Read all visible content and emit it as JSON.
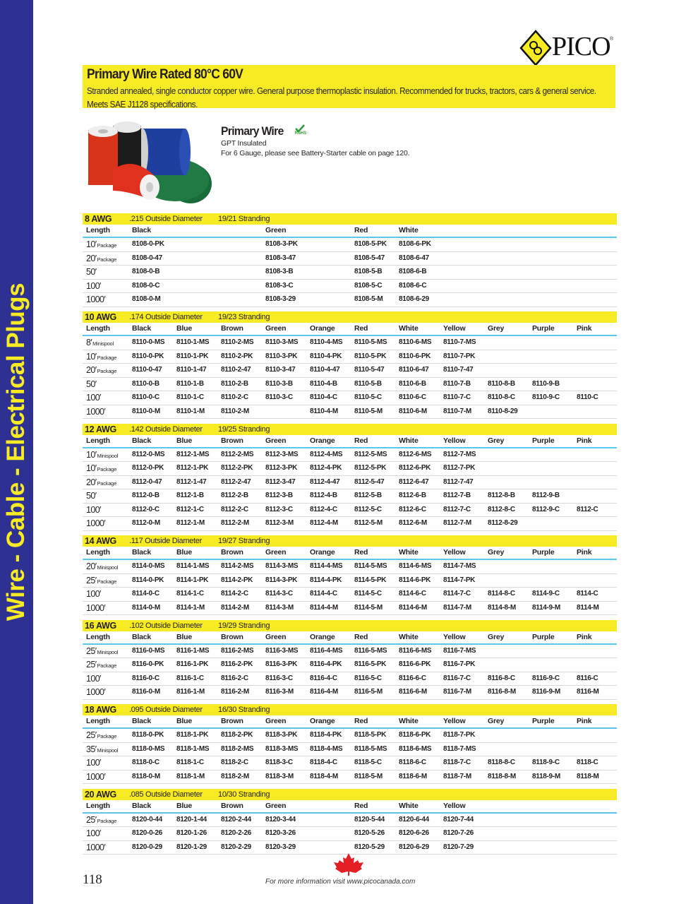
{
  "sidebar": {
    "label": "Wire - Cable - Electrical Plugs",
    "color": "#2e3191",
    "text_color": "#f7ec23"
  },
  "logo": {
    "text": "PICO",
    "reg": "®"
  },
  "banner": {
    "title": "Primary Wire Rated 80°C 60V",
    "description": "Stranded annealed, single conductor copper wire. General purpose thermoplastic insulation. Recommended for trucks, tractors, cars & general service. Meets SAE J1128 specifications.",
    "color": "#f7ec23"
  },
  "product": {
    "title": "Primary Wire",
    "rohs": "RoHS",
    "subtitle": "GPT Insulated",
    "note": "For 6 Gauge, please see Battery-Starter cable on page 120."
  },
  "tables": [
    {
      "awg": "8 AWG",
      "diameter": ".215 Outside Diameter",
      "stranding": "19/21 Stranding",
      "columns": [
        "Length",
        "Black",
        "",
        "",
        "Green",
        "",
        "Red",
        "White",
        "",
        "",
        "",
        ""
      ],
      "rows": [
        {
          "len": "10′",
          "note": "Package",
          "cells": [
            "8108-0-PK",
            "",
            "",
            "8108-3-PK",
            "",
            "8108-5-PK",
            "8108-6-PK",
            "",
            "",
            "",
            ""
          ]
        },
        {
          "len": "20′",
          "note": "Package",
          "cells": [
            "8108-0-47",
            "",
            "",
            "8108-3-47",
            "",
            "8108-5-47",
            "8108-6-47",
            "",
            "",
            "",
            ""
          ]
        },
        {
          "len": "50′",
          "note": "",
          "cells": [
            "8108-0-B",
            "",
            "",
            "8108-3-B",
            "",
            "8108-5-B",
            "8108-6-B",
            "",
            "",
            "",
            ""
          ]
        },
        {
          "len": "100′",
          "note": "",
          "cells": [
            "8108-0-C",
            "",
            "",
            "8108-3-C",
            "",
            "8108-5-C",
            "8108-6-C",
            "",
            "",
            "",
            ""
          ]
        },
        {
          "len": "1000′",
          "note": "",
          "cells": [
            "8108-0-M",
            "",
            "",
            "8108-3-29",
            "",
            "8108-5-M",
            "8108-6-29",
            "",
            "",
            "",
            ""
          ]
        }
      ]
    },
    {
      "awg": "10 AWG",
      "diameter": ".174 Outside Diameter",
      "stranding": "19/23 Stranding",
      "columns": [
        "Length",
        "Black",
        "Blue",
        "Brown",
        "Green",
        "Orange",
        "Red",
        "White",
        "Yellow",
        "Grey",
        "Purple",
        "Pink"
      ],
      "rows": [
        {
          "len": "8′",
          "note": "Minispool",
          "cells": [
            "8110-0-MS",
            "8110-1-MS",
            "8110-2-MS",
            "8110-3-MS",
            "8110-4-MS",
            "8110-5-MS",
            "8110-6-MS",
            "8110-7-MS",
            "",
            "",
            ""
          ]
        },
        {
          "len": "10′",
          "note": "Package",
          "cells": [
            "8110-0-PK",
            "8110-1-PK",
            "8110-2-PK",
            "8110-3-PK",
            "8110-4-PK",
            "8110-5-PK",
            "8110-6-PK",
            "8110-7-PK",
            "",
            "",
            ""
          ]
        },
        {
          "len": "20′",
          "note": "Package",
          "cells": [
            "8110-0-47",
            "8110-1-47",
            "8110-2-47",
            "8110-3-47",
            "8110-4-47",
            "8110-5-47",
            "8110-6-47",
            "8110-7-47",
            "",
            "",
            ""
          ]
        },
        {
          "len": "50′",
          "note": "",
          "cells": [
            "8110-0-B",
            "8110-1-B",
            "8110-2-B",
            "8110-3-B",
            "8110-4-B",
            "8110-5-B",
            "8110-6-B",
            "8110-7-B",
            "8110-8-B",
            "8110-9-B",
            ""
          ]
        },
        {
          "len": "100′",
          "note": "",
          "cells": [
            "8110-0-C",
            "8110-1-C",
            "8110-2-C",
            "8110-3-C",
            "8110-4-C",
            "8110-5-C",
            "8110-6-C",
            "8110-7-C",
            "8110-8-C",
            "8110-9-C",
            "8110-C"
          ]
        },
        {
          "len": "1000′",
          "note": "",
          "cells": [
            "8110-0-M",
            "8110-1-M",
            "8110-2-M",
            "",
            "8110-4-M",
            "8110-5-M",
            "8110-6-M",
            "8110-7-M",
            "8110-8-29",
            "",
            ""
          ]
        }
      ]
    },
    {
      "awg": "12 AWG",
      "diameter": ".142 Outside Diameter",
      "stranding": "19/25 Stranding",
      "columns": [
        "Length",
        "Black",
        "Blue",
        "Brown",
        "Green",
        "Orange",
        "Red",
        "White",
        "Yellow",
        "Grey",
        "Purple",
        "Pink"
      ],
      "rows": [
        {
          "len": "10′",
          "note": "Minispool",
          "cells": [
            "8112-0-MS",
            "8112-1-MS",
            "8112-2-MS",
            "8112-3-MS",
            "8112-4-MS",
            "8112-5-MS",
            "8112-6-MS",
            "8112-7-MS",
            "",
            "",
            ""
          ]
        },
        {
          "len": "10′",
          "note": "Package",
          "cells": [
            "8112-0-PK",
            "8112-1-PK",
            "8112-2-PK",
            "8112-3-PK",
            "8112-4-PK",
            "8112-5-PK",
            "8112-6-PK",
            "8112-7-PK",
            "",
            "",
            ""
          ]
        },
        {
          "len": "20′",
          "note": "Package",
          "cells": [
            "8112-0-47",
            "8112-1-47",
            "8112-2-47",
            "8112-3-47",
            "8112-4-47",
            "8112-5-47",
            "8112-6-47",
            "8112-7-47",
            "",
            "",
            ""
          ]
        },
        {
          "len": "50′",
          "note": "",
          "cells": [
            "8112-0-B",
            "8112-1-B",
            "8112-2-B",
            "8112-3-B",
            "8112-4-B",
            "8112-5-B",
            "8112-6-B",
            "8112-7-B",
            "8112-8-B",
            "8112-9-B",
            ""
          ]
        },
        {
          "len": "100′",
          "note": "",
          "cells": [
            "8112-0-C",
            "8112-1-C",
            "8112-2-C",
            "8112-3-C",
            "8112-4-C",
            "8112-5-C",
            "8112-6-C",
            "8112-7-C",
            "8112-8-C",
            "8112-9-C",
            "8112-C"
          ]
        },
        {
          "len": "1000′",
          "note": "",
          "cells": [
            "8112-0-M",
            "8112-1-M",
            "8112-2-M",
            "8112-3-M",
            "8112-4-M",
            "8112-5-M",
            "8112-6-M",
            "8112-7-M",
            "8112-8-29",
            "",
            ""
          ]
        }
      ]
    },
    {
      "awg": "14 AWG",
      "diameter": ".117 Outside Diameter",
      "stranding": "19/27 Stranding",
      "columns": [
        "Length",
        "Black",
        "Blue",
        "Brown",
        "Green",
        "Orange",
        "Red",
        "White",
        "Yellow",
        "Grey",
        "Purple",
        "Pink"
      ],
      "rows": [
        {
          "len": "20′",
          "note": "Minispool",
          "cells": [
            "8114-0-MS",
            "8114-1-MS",
            "8114-2-MS",
            "8114-3-MS",
            "8114-4-MS",
            "8114-5-MS",
            "8114-6-MS",
            "8114-7-MS",
            "",
            "",
            ""
          ]
        },
        {
          "len": "25′",
          "note": "Package",
          "cells": [
            "8114-0-PK",
            "8114-1-PK",
            "8114-2-PK",
            "8114-3-PK",
            "8114-4-PK",
            "8114-5-PK",
            "8114-6-PK",
            "8114-7-PK",
            "",
            "",
            ""
          ]
        },
        {
          "len": "100′",
          "note": "",
          "cells": [
            "8114-0-C",
            "8114-1-C",
            "8114-2-C",
            "8114-3-C",
            "8114-4-C",
            "8114-5-C",
            "8114-6-C",
            "8114-7-C",
            "8114-8-C",
            "8114-9-C",
            "8114-C"
          ]
        },
        {
          "len": "1000′",
          "note": "",
          "cells": [
            "8114-0-M",
            "8114-1-M",
            "8114-2-M",
            "8114-3-M",
            "8114-4-M",
            "8114-5-M",
            "8114-6-M",
            "8114-7-M",
            "8114-8-M",
            "8114-9-M",
            "8114-M"
          ]
        }
      ]
    },
    {
      "awg": "16 AWG",
      "diameter": ".102 Outside Diameter",
      "stranding": "19/29 Stranding",
      "columns": [
        "Length",
        "Black",
        "Blue",
        "Brown",
        "Green",
        "Orange",
        "Red",
        "White",
        "Yellow",
        "Grey",
        "Purple",
        "Pink"
      ],
      "rows": [
        {
          "len": "25′",
          "note": "Minispool",
          "cells": [
            "8116-0-MS",
            "8116-1-MS",
            "8116-2-MS",
            "8116-3-MS",
            "8116-4-MS",
            "8116-5-MS",
            "8116-6-MS",
            "8116-7-MS",
            "",
            "",
            ""
          ]
        },
        {
          "len": "25′",
          "note": "Package",
          "cells": [
            "8116-0-PK",
            "8116-1-PK",
            "8116-2-PK",
            "8116-3-PK",
            "8116-4-PK",
            "8116-5-PK",
            "8116-6-PK",
            "8116-7-PK",
            "",
            "",
            ""
          ]
        },
        {
          "len": "100′",
          "note": "",
          "cells": [
            "8116-0-C",
            "8116-1-C",
            "8116-2-C",
            "8116-3-C",
            "8116-4-C",
            "8116-5-C",
            "8116-6-C",
            "8116-7-C",
            "8116-8-C",
            "8116-9-C",
            "8116-C"
          ]
        },
        {
          "len": "1000′",
          "note": "",
          "cells": [
            "8116-0-M",
            "8116-1-M",
            "8116-2-M",
            "8116-3-M",
            "8116-4-M",
            "8116-5-M",
            "8116-6-M",
            "8116-7-M",
            "8116-8-M",
            "8116-9-M",
            "8116-M"
          ]
        }
      ]
    },
    {
      "awg": "18 AWG",
      "diameter": ".095 Outside Diameter",
      "stranding": "16/30 Stranding",
      "columns": [
        "Length",
        "Black",
        "Blue",
        "Brown",
        "Green",
        "Orange",
        "Red",
        "White",
        "Yellow",
        "Grey",
        "Purple",
        "Pink"
      ],
      "rows": [
        {
          "len": "25′",
          "note": "Package",
          "cells": [
            "8118-0-PK",
            "8118-1-PK",
            "8118-2-PK",
            "8118-3-PK",
            "8118-4-PK",
            "8118-5-PK",
            "8118-6-PK",
            "8118-7-PK",
            "",
            "",
            ""
          ]
        },
        {
          "len": "35′",
          "note": "Minispool",
          "cells": [
            "8118-0-MS",
            "8118-1-MS",
            "8118-2-MS",
            "8118-3-MS",
            "8118-4-MS",
            "8118-5-MS",
            "8118-6-MS",
            "8118-7-MS",
            "",
            "",
            ""
          ]
        },
        {
          "len": "100′",
          "note": "",
          "cells": [
            "8118-0-C",
            "8118-1-C",
            "8118-2-C",
            "8118-3-C",
            "8118-4-C",
            "8118-5-C",
            "8118-6-C",
            "8118-7-C",
            "8118-8-C",
            "8118-9-C",
            "8118-C"
          ]
        },
        {
          "len": "1000′",
          "note": "",
          "cells": [
            "8118-0-M",
            "8118-1-M",
            "8118-2-M",
            "8118-3-M",
            "8118-4-M",
            "8118-5-M",
            "8118-6-M",
            "8118-7-M",
            "8118-8-M",
            "8118-9-M",
            "8118-M"
          ]
        }
      ]
    },
    {
      "awg": "20 AWG",
      "diameter": ".085 Outside Diameter",
      "stranding": "10/30 Stranding",
      "columns": [
        "Length",
        "Black",
        "Blue",
        "Brown",
        "Green",
        "",
        "Red",
        "White",
        "Yellow",
        "",
        "",
        ""
      ],
      "rows": [
        {
          "len": "25′",
          "note": "Package",
          "cells": [
            "8120-0-44",
            "8120-1-44",
            "8120-2-44",
            "8120-3-44",
            "",
            "8120-5-44",
            "8120-6-44",
            "8120-7-44",
            "",
            "",
            ""
          ]
        },
        {
          "len": "100′",
          "note": "",
          "cells": [
            "8120-0-26",
            "8120-1-26",
            "8120-2-26",
            "8120-3-26",
            "",
            "8120-5-26",
            "8120-6-26",
            "8120-7-26",
            "",
            "",
            ""
          ]
        },
        {
          "len": "1000′",
          "note": "",
          "cells": [
            "8120-0-29",
            "8120-1-29",
            "8120-2-29",
            "8120-3-29",
            "",
            "8120-5-29",
            "8120-6-29",
            "8120-7-29",
            "",
            "",
            ""
          ]
        }
      ]
    }
  ],
  "footer": {
    "page_number": "118",
    "text": "For more information visit www.picocanada.com",
    "leaf_color": "#e31e24"
  }
}
